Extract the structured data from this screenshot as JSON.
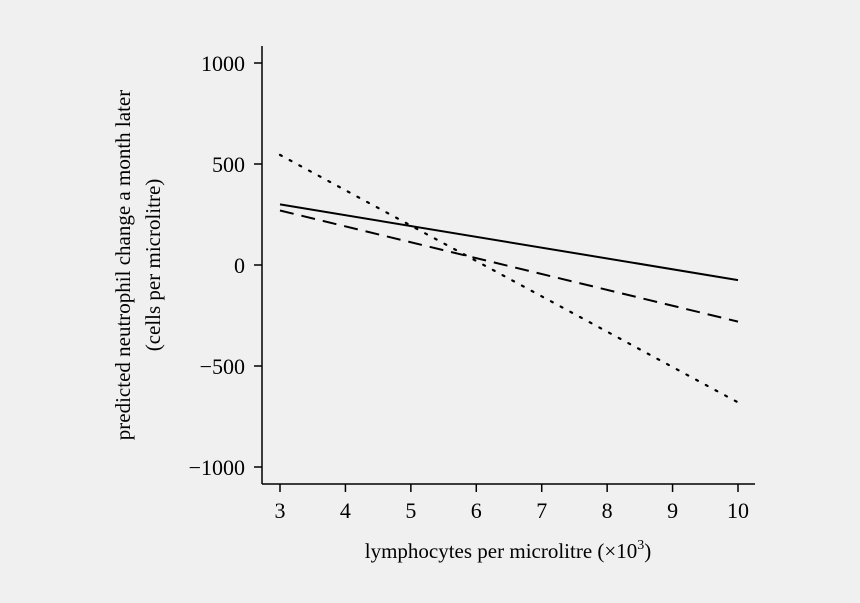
{
  "chart_data": {
    "type": "line",
    "title": "",
    "xlabel": "lymphocytes per microlitre (×10",
    "xlabel_sup": "3",
    "xlabel_close": ")",
    "ylabel_line1": "predicted neutrophil change a month later",
    "ylabel_line2": "(cells per microlitre)",
    "xlim": [
      3,
      10
    ],
    "ylim": [
      -1000,
      1000
    ],
    "xticks": [
      3,
      4,
      5,
      6,
      7,
      8,
      9,
      10
    ],
    "yticks": [
      1000,
      500,
      0,
      -500,
      -1000
    ],
    "ytick_labels": [
      "1000",
      "500",
      "0",
      "−500",
      "−1000"
    ],
    "grid": false,
    "legend": "none",
    "series": [
      {
        "style": "solid",
        "x": [
          3,
          10
        ],
        "y": [
          300,
          -75
        ]
      },
      {
        "style": "dashed",
        "x": [
          3,
          10
        ],
        "y": [
          270,
          -280
        ]
      },
      {
        "style": "dotted",
        "x": [
          3,
          10
        ],
        "y": [
          545,
          -680
        ]
      }
    ]
  }
}
